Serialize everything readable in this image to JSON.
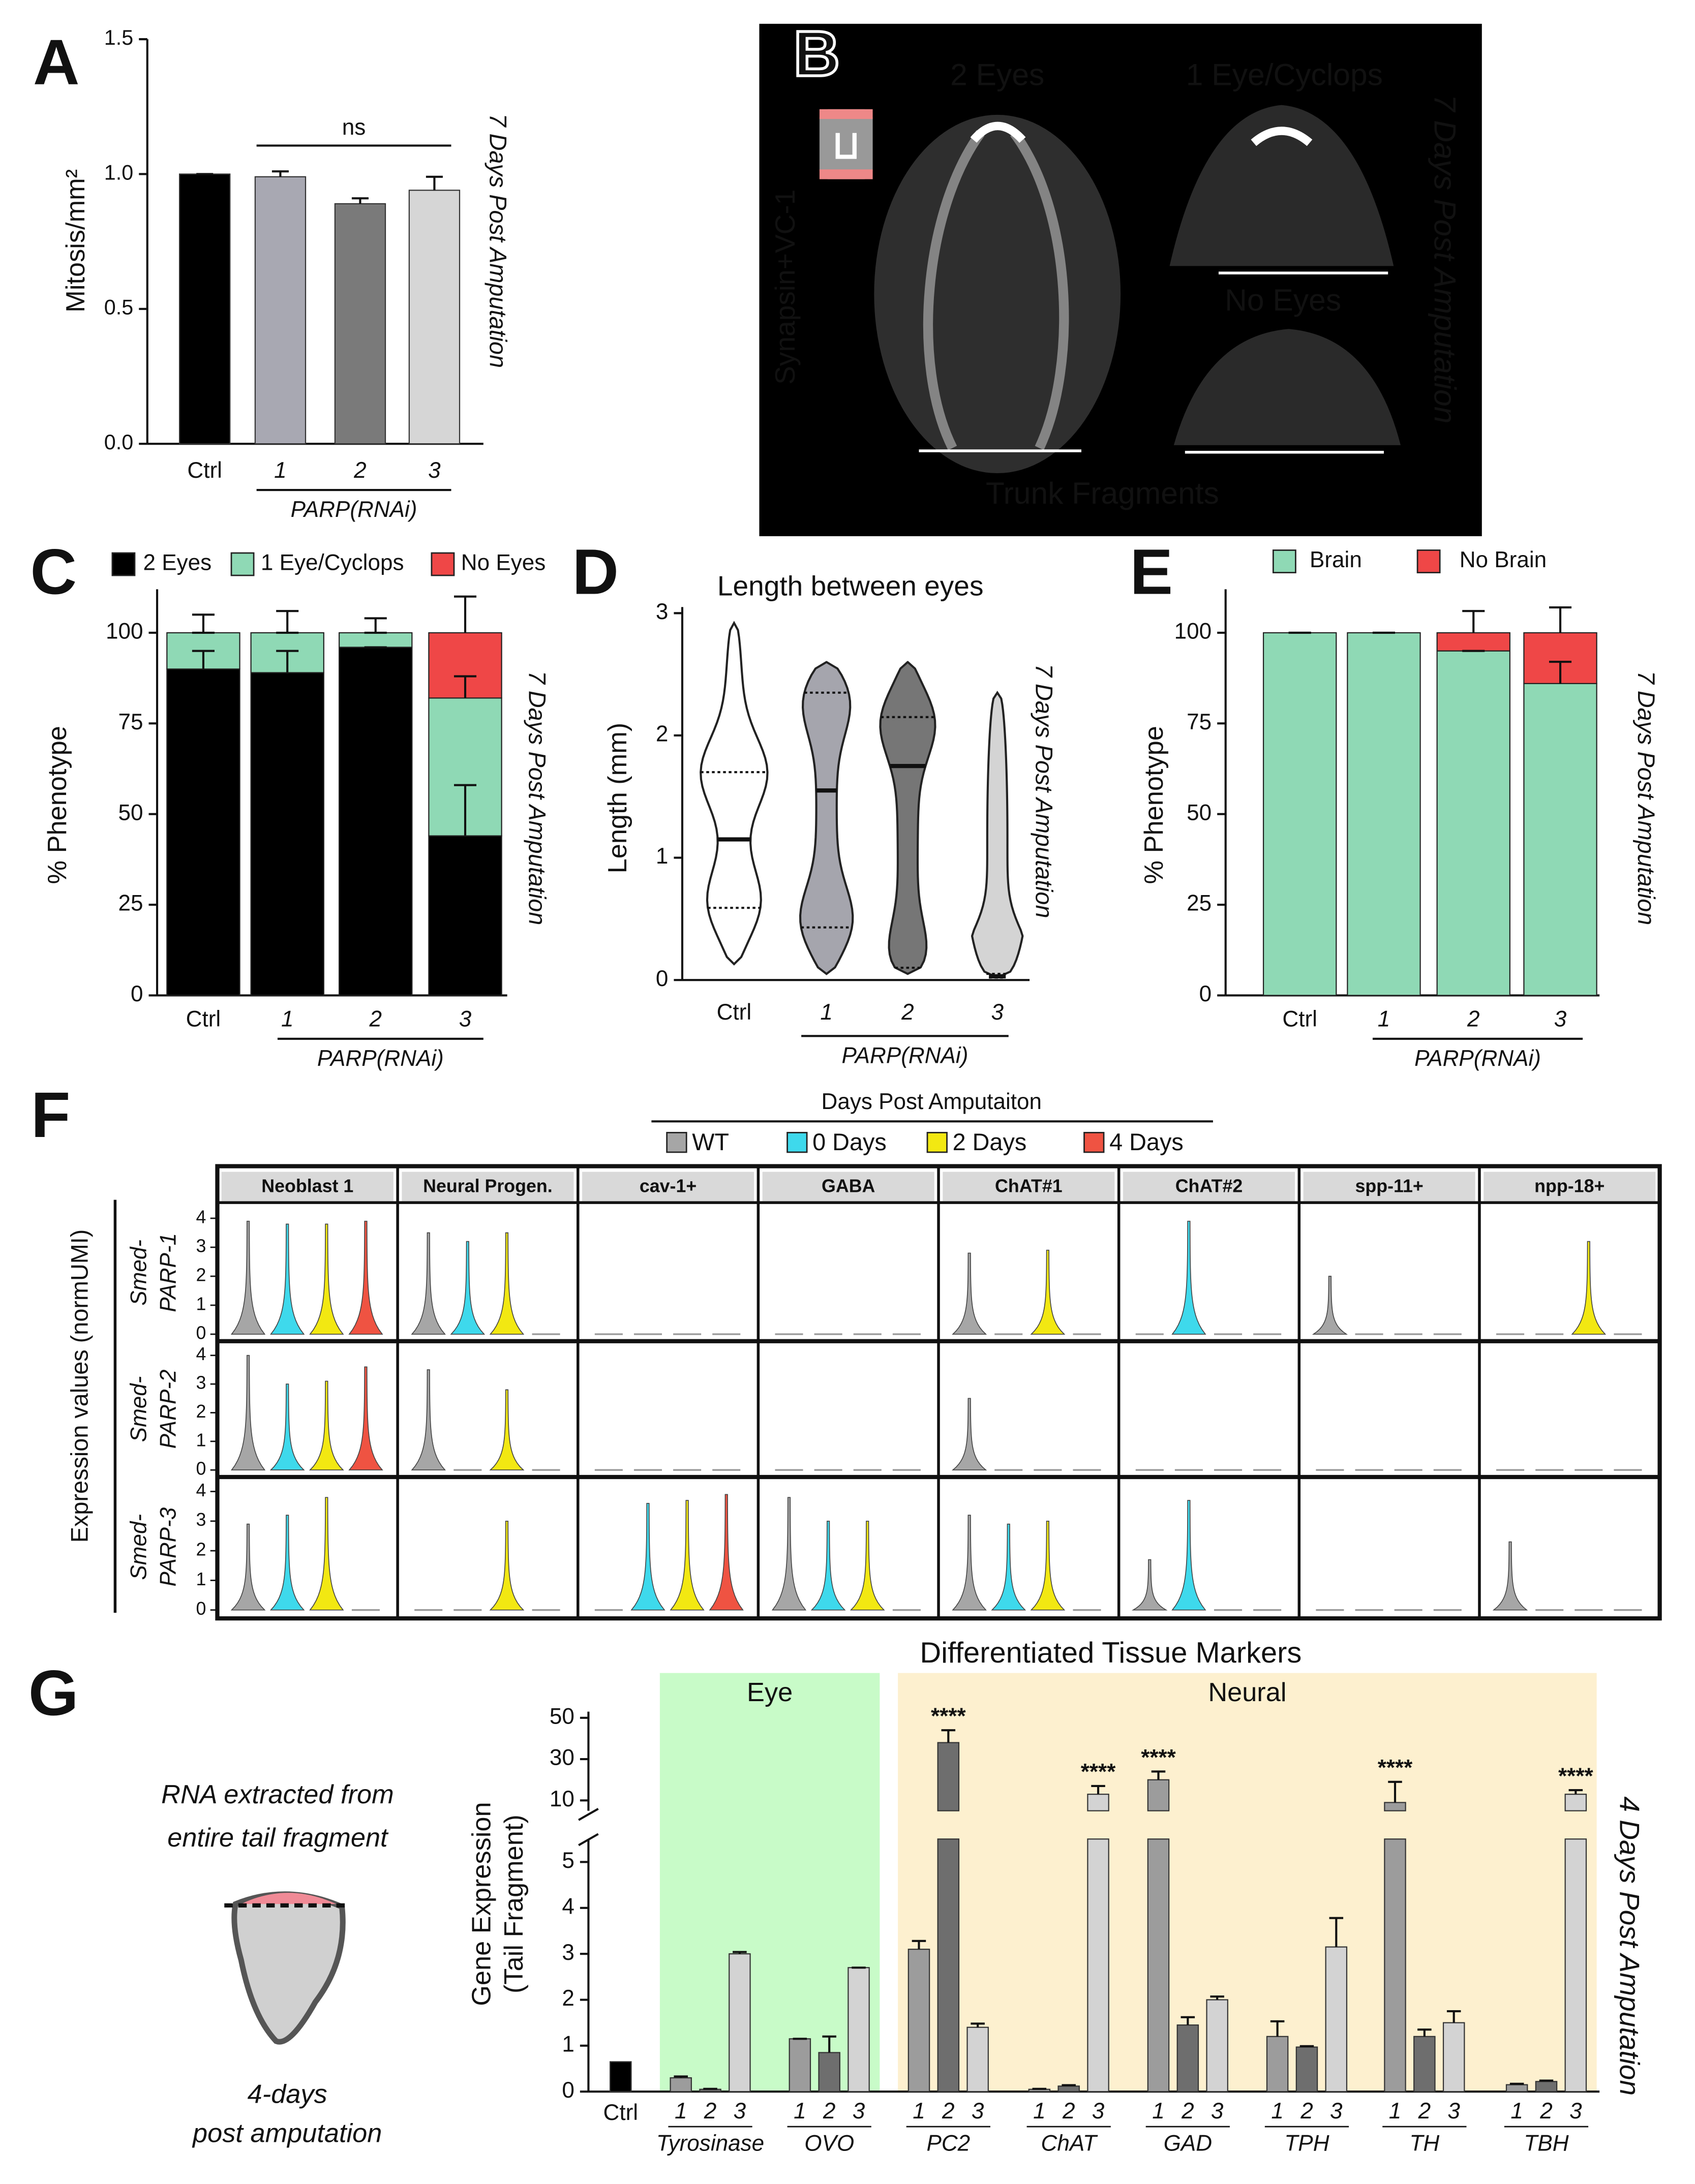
{
  "chart_data": [
    {
      "panel": "A",
      "type": "bar",
      "categories": [
        "Ctrl",
        "1",
        "2",
        "3"
      ],
      "values": [
        1.0,
        0.99,
        0.89,
        0.94
      ],
      "errors": [
        0,
        0.02,
        0.02,
        0.05
      ],
      "colors": [
        "#000000",
        "#a8a8b2",
        "#7a7a7a",
        "#d6d6d6"
      ],
      "ylabel": "Mitosis/mm²",
      "ylim": [
        0,
        1.5
      ],
      "yticks": [
        {
          "value": 0,
          "label": "0.0"
        },
        {
          "value": 0.5,
          "label": "0.5"
        },
        {
          "value": 1,
          "label": "1.0"
        },
        {
          "value": 1.5,
          "label": "1.5"
        }
      ],
      "group_label": "PARP(RNAi)",
      "annotation": "ns",
      "side_label": "7 Days Post Amputation"
    },
    {
      "panel": "B",
      "type": "image",
      "stain": "Synapsin+VC-1",
      "labels": [
        "2 Eyes",
        "1 Eye/Cyclops",
        "No Eyes",
        "Trunk Fragments"
      ],
      "side_label": "7 Days Post Amputation"
    },
    {
      "panel": "C",
      "type": "stacked_bar",
      "categories": [
        "Ctrl",
        "1",
        "2",
        "3"
      ],
      "series": [
        {
          "name": "2 Eyes",
          "color": "#000000",
          "values": [
            90,
            89,
            96,
            44
          ],
          "errors": [
            5,
            6,
            0,
            14
          ]
        },
        {
          "name": "1 Eye/Cyclops",
          "color": "#8fd9b5",
          "values": [
            10,
            11,
            4,
            38
          ],
          "errors": [
            5,
            6,
            4,
            6
          ]
        },
        {
          "name": "No Eyes",
          "color": "#ef4747",
          "values": [
            0,
            0,
            0,
            18
          ],
          "errors": [
            0,
            0,
            0,
            10
          ]
        }
      ],
      "ylabel": "% Phenotype",
      "ylim": [
        0,
        112
      ],
      "yticks": [
        0,
        25,
        50,
        75,
        100
      ],
      "group_label": "PARP(RNAi)",
      "side_label": "7 Days Post Amputation"
    },
    {
      "panel": "D",
      "type": "violin",
      "title": "Length between eyes",
      "ylabel": "Length (mm)",
      "categories": [
        "Ctrl",
        "1",
        "2",
        "3"
      ],
      "colors": [
        "#ffffff",
        "#a5a5ad",
        "#767676",
        "#d4d4d4"
      ],
      "min": [
        0.13,
        0.05,
        0.05,
        0.02
      ],
      "q1": [
        0.59,
        0.43,
        0.1,
        0.02
      ],
      "median": [
        1.15,
        1.55,
        1.75,
        0.03
      ],
      "q3": [
        1.7,
        2.35,
        2.15,
        0.05
      ],
      "max": [
        2.92,
        2.6,
        2.6,
        2.35
      ],
      "ylim": [
        0,
        3.05
      ],
      "yticks": [
        0,
        1,
        2,
        3
      ],
      "group_label": "PARP(RNAi)",
      "side_label": "7 Days Post Amputation"
    },
    {
      "panel": "E",
      "type": "stacked_bar",
      "categories": [
        "Ctrl",
        "1",
        "2",
        "3"
      ],
      "series": [
        {
          "name": "Brain",
          "color": "#8fd9b5",
          "values": [
            100,
            100,
            95,
            86
          ],
          "errors": [
            0,
            0,
            0,
            6
          ]
        },
        {
          "name": "No Brain",
          "color": "#ef4747",
          "values": [
            0,
            0,
            5,
            14
          ],
          "errors": [
            0,
            0,
            6,
            7
          ]
        }
      ],
      "ylabel": "% Phenotype",
      "ylim": [
        0,
        112
      ],
      "yticks": [
        0,
        25,
        50,
        75,
        100
      ],
      "group_label": "PARP(RNAi)",
      "side_label": "7 Days Post Amputation"
    },
    {
      "panel": "F",
      "type": "violin_grid",
      "legend_title": "Days Post Amputaiton",
      "series": [
        {
          "name": "WT",
          "color": "#a6a6a6"
        },
        {
          "name": "0 Days",
          "color": "#3ed9ec"
        },
        {
          "name": "2 Days",
          "color": "#f2e812"
        },
        {
          "name": "4 Days",
          "color": "#ef5342"
        }
      ],
      "columns": [
        "Neoblast 1",
        "Neural Progen.",
        "cav-1+",
        "GABA",
        "ChAT#1",
        "ChAT#2",
        "spp-11+",
        "npp-18+"
      ],
      "rows": [
        [
          "Smed-",
          "PARP-1"
        ],
        [
          "Smed-",
          "PARP-2"
        ],
        [
          "Smed-",
          "PARP-3"
        ]
      ],
      "values": [
        [
          [
            3.9,
            3.8,
            3.8,
            3.9
          ],
          [
            3.5,
            3.2,
            3.5,
            0
          ],
          [
            0,
            0,
            0,
            0
          ],
          [
            0,
            0,
            0,
            0
          ],
          [
            2.8,
            0,
            2.9,
            0
          ],
          [
            0,
            3.9,
            0,
            0
          ],
          [
            2.0,
            0,
            0,
            0
          ],
          [
            0,
            0,
            3.2,
            0
          ]
        ],
        [
          [
            4.0,
            3.0,
            3.1,
            3.6
          ],
          [
            3.5,
            0,
            2.8,
            0
          ],
          [
            0,
            0,
            0,
            0
          ],
          [
            0,
            0,
            0,
            0
          ],
          [
            2.5,
            0,
            0,
            0
          ],
          [
            0,
            0,
            0,
            0
          ],
          [
            0,
            0,
            0,
            0
          ],
          [
            0,
            0,
            0,
            0
          ]
        ],
        [
          [
            2.9,
            3.2,
            3.8,
            0
          ],
          [
            0,
            0,
            3.0,
            0
          ],
          [
            0,
            3.6,
            3.7,
            3.9
          ],
          [
            3.8,
            3.0,
            3.0,
            0
          ],
          [
            3.2,
            2.9,
            3.0,
            0
          ],
          [
            1.7,
            3.7,
            0,
            0
          ],
          [
            0,
            0,
            0,
            0
          ],
          [
            2.3,
            0,
            0,
            0
          ]
        ]
      ],
      "ylabel": "Expression values (normUMI)",
      "ylim": [
        0,
        4.3
      ],
      "yticks": [
        0,
        1,
        2,
        3,
        4
      ]
    },
    {
      "panel": "G",
      "type": "broken_bar",
      "title": "Differentiated Tissue Markers",
      "ylabel": [
        "Gene Expression",
        "(Tail Fragment)"
      ],
      "control": {
        "label": "Ctrl",
        "value": 0.65,
        "color": "#000000"
      },
      "subcategories": [
        "1",
        "2",
        "3"
      ],
      "colors": [
        "#9c9c9c",
        "#6e6e6e",
        "#d3d3d3"
      ],
      "regions": [
        {
          "label": "Eye",
          "color": "#c8fbc8",
          "groups": [
            {
              "name": "Tyrosinase",
              "values": [
                0.3,
                0.05,
                3.0
              ],
              "errors": [
                0.03,
                0.01,
                0.04
              ]
            },
            {
              "name": "OVO",
              "values": [
                1.15,
                0.85,
                2.7
              ],
              "errors": [
                0,
                0.35,
                0
              ]
            }
          ]
        },
        {
          "label": "Neural",
          "color": "#fdf0cf",
          "groups": [
            {
              "name": "PC2",
              "values": [
                3.1,
                38,
                1.4
              ],
              "errors": [
                0.18,
                6,
                0.08
              ],
              "annotations": [
                null,
                "****",
                null
              ]
            },
            {
              "name": "ChAT",
              "values": [
                0.05,
                0.12,
                13
              ],
              "errors": [
                0.01,
                0.02,
                4
              ],
              "annotations": [
                null,
                null,
                "****"
              ]
            },
            {
              "name": "GAD",
              "values": [
                20,
                1.45,
                2.0
              ],
              "errors": [
                4,
                0.17,
                0.07
              ],
              "annotations": [
                "****",
                null,
                null
              ]
            },
            {
              "name": "TPH",
              "values": [
                1.2,
                0.97,
                3.15
              ],
              "errors": [
                0.33,
                0.02,
                0.63
              ]
            },
            {
              "name": "TH",
              "values": [
                9,
                1.2,
                1.5
              ],
              "errors": [
                10,
                0.15,
                0.25
              ],
              "annotations": [
                "****",
                null,
                null
              ]
            },
            {
              "name": "TBH",
              "values": [
                0.15,
                0.22,
                13
              ],
              "errors": [
                0.02,
                0.02,
                2
              ],
              "annotations": [
                null,
                null,
                "****"
              ]
            }
          ]
        }
      ],
      "ylim": [
        0,
        5.5
      ],
      "yticks": [
        0,
        1,
        2,
        3,
        4,
        5
      ],
      "upper_ylim": [
        5,
        53
      ],
      "upper_yticks": [
        10,
        30,
        50
      ],
      "side_label": "4 Days Post Amputation",
      "illustration_text": [
        [
          "RNA extracted from",
          "entire tail fragment"
        ],
        [
          "4-days",
          "post amputation"
        ]
      ]
    }
  ]
}
